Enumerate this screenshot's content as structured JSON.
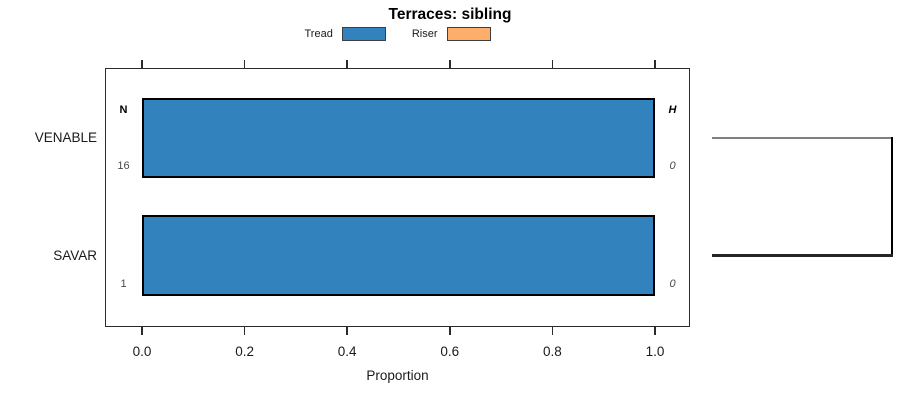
{
  "legend": {
    "items": [
      {
        "label": "Tread",
        "color": "#3182bd"
      },
      {
        "label": "Riser",
        "color": "#fdae6b"
      }
    ]
  },
  "chart_data": {
    "type": "bar",
    "orientation": "horizontal",
    "title": "Terraces: sibling",
    "xlabel": "Proportion",
    "xlim": [
      0,
      1
    ],
    "xticks": [
      0,
      0.2,
      0.4,
      0.6,
      0.8,
      1.0
    ],
    "xtick_labels": [
      "0.0",
      "0.2",
      "0.4",
      "0.6",
      "0.8",
      "1.0"
    ],
    "categories": [
      "VENABLE",
      "SAVAR"
    ],
    "series": [
      {
        "name": "Tread",
        "color": "#3182bd",
        "values": [
          1.0,
          1.0
        ]
      },
      {
        "name": "Riser",
        "color": "#fdae6b",
        "values": [
          0.0,
          0.0
        ]
      }
    ],
    "annotations": {
      "left_header": "N",
      "right_header": "H",
      "rows": [
        {
          "category": "VENABLE",
          "n": "16",
          "h": "0"
        },
        {
          "category": "SAVAR",
          "n": "1",
          "h": "0"
        }
      ]
    },
    "tree": {
      "type": "dendrogram",
      "leaves": [
        "VENABLE",
        "SAVAR"
      ],
      "edge_colors": {
        "top": "#808080",
        "vertical": "#000000",
        "bottom": "#262626"
      }
    },
    "layout_hints": {
      "grid": false,
      "legend_position": "top-center",
      "box": true,
      "ticks_mirrored_top": true
    }
  }
}
